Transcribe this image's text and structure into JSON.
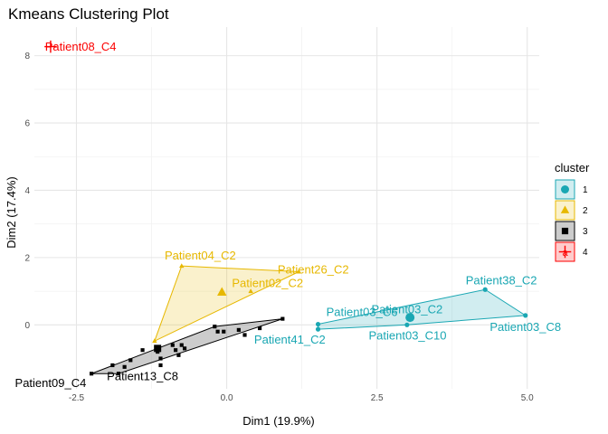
{
  "chart_data": {
    "type": "scatter",
    "title": "Kmeans Clustering Plot",
    "xlabel": "Dim1 (19.9%)",
    "ylabel": "Dim2 (17.4%)",
    "xlim": [
      -3.2,
      5.2
    ],
    "ylim": [
      -1.9,
      8.85
    ],
    "x_ticks": [
      {
        "value": -2.5,
        "label": "-2.5"
      },
      {
        "value": 0,
        "label": "0.0"
      },
      {
        "value": 2.5,
        "label": "2.5"
      },
      {
        "value": 5,
        "label": "5.0"
      }
    ],
    "y_ticks": [
      {
        "value": 0,
        "label": "0"
      },
      {
        "value": 2,
        "label": "2"
      },
      {
        "value": 4,
        "label": "4"
      },
      {
        "value": 6,
        "label": "6"
      },
      {
        "value": 8,
        "label": "8"
      }
    ],
    "grid": true,
    "legend": {
      "title": "cluster",
      "position": "right"
    },
    "series": [
      {
        "name": "1",
        "color": "#1aa7b3",
        "marker": "circle",
        "hull": [
          [
            1.52,
            -0.13
          ],
          [
            1.52,
            0.02
          ],
          [
            4.3,
            1.05
          ],
          [
            4.97,
            0.28
          ],
          [
            3.0,
            0.0
          ]
        ],
        "centroid": [
          3.05,
          0.22
        ],
        "points": [
          {
            "x": 1.52,
            "y": -0.13
          },
          {
            "x": 1.52,
            "y": 0.02
          },
          {
            "x": 4.3,
            "y": 1.05
          },
          {
            "x": 4.97,
            "y": 0.28
          },
          {
            "x": 3.0,
            "y": 0.0
          },
          {
            "x": 3.08,
            "y": 0.2
          }
        ],
        "labels": [
          {
            "text": "Patient03_C6",
            "x": 2.25,
            "y": 0.38
          },
          {
            "text": "Patient03_C2",
            "x": 3.0,
            "y": 0.46
          },
          {
            "text": "Patient38_C2",
            "x": 4.57,
            "y": 1.32
          },
          {
            "text": "Patient41_C2",
            "x": 1.05,
            "y": -0.44
          },
          {
            "text": "Patient03_C10",
            "x": 3.01,
            "y": -0.31
          },
          {
            "text": "Patient03_C8",
            "x": 4.97,
            "y": -0.06
          }
        ]
      },
      {
        "name": "2",
        "color": "#e7b800",
        "marker": "triangle",
        "hull": [
          [
            -0.75,
            1.75
          ],
          [
            1.2,
            1.58
          ],
          [
            -1.2,
            -0.48
          ]
        ],
        "centroid": [
          -0.08,
          0.97
        ],
        "points": [
          {
            "x": -0.75,
            "y": 1.75
          },
          {
            "x": 1.2,
            "y": 1.58
          },
          {
            "x": -1.2,
            "y": -0.48
          },
          {
            "x": 0.4,
            "y": 1.0
          }
        ],
        "labels": [
          {
            "text": "Patient04_C2",
            "x": -0.44,
            "y": 2.06
          },
          {
            "text": "Patient26_C2",
            "x": 1.44,
            "y": 1.65
          },
          {
            "text": "Patient02_C2",
            "x": 0.68,
            "y": 1.25
          }
        ]
      },
      {
        "name": "3",
        "color": "#000000",
        "marker": "square",
        "hull": [
          [
            -2.25,
            -1.45
          ],
          [
            -1.8,
            -1.45
          ],
          [
            0.93,
            0.18
          ],
          [
            -0.2,
            -0.05
          ]
        ],
        "centroid": [
          -1.15,
          -0.7
        ],
        "points": [
          {
            "x": -2.25,
            "y": -1.45
          },
          {
            "x": -1.8,
            "y": -1.45
          },
          {
            "x": 0.93,
            "y": 0.18
          },
          {
            "x": -0.2,
            "y": -0.05
          },
          {
            "x": -1.9,
            "y": -1.2
          },
          {
            "x": -1.6,
            "y": -1.05
          },
          {
            "x": -1.7,
            "y": -1.25
          },
          {
            "x": -1.4,
            "y": -0.75
          },
          {
            "x": -1.15,
            "y": -0.8
          },
          {
            "x": -1.1,
            "y": -1.0
          },
          {
            "x": -1.1,
            "y": -1.2
          },
          {
            "x": -0.9,
            "y": -0.6
          },
          {
            "x": -0.85,
            "y": -0.75
          },
          {
            "x": -0.75,
            "y": -0.6
          },
          {
            "x": -0.7,
            "y": -0.7
          },
          {
            "x": -0.8,
            "y": -0.9
          },
          {
            "x": -0.15,
            "y": -0.2
          },
          {
            "x": -0.05,
            "y": -0.2
          },
          {
            "x": 0.2,
            "y": -0.15
          },
          {
            "x": 0.55,
            "y": -0.1
          },
          {
            "x": 0.3,
            "y": -0.3
          }
        ],
        "labels": [
          {
            "text": "Patient09_C4",
            "x": -2.93,
            "y": -1.73
          },
          {
            "text": "Patient13_C8",
            "x": -1.4,
            "y": -1.53
          }
        ]
      },
      {
        "name": "4",
        "color": "#fc0000",
        "marker": "plus",
        "hull": [],
        "points": [
          {
            "x": -2.93,
            "y": 8.27
          }
        ],
        "labels": [
          {
            "text": "Patient08_C4",
            "x": -2.43,
            "y": 8.27
          }
        ]
      }
    ]
  }
}
